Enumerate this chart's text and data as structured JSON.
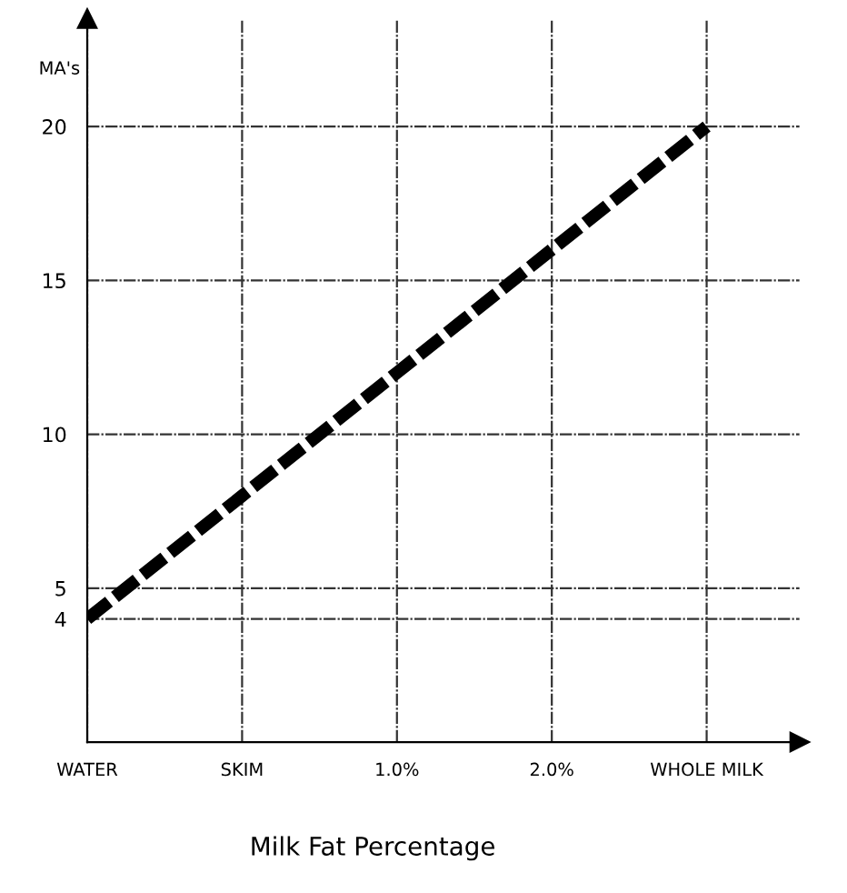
{
  "chart_data": {
    "type": "line",
    "ylabel": "MA's",
    "xlabel": "Milk Fat Percentage",
    "categories": [
      "WATER",
      "SKIM",
      "1.0%",
      "2.0%",
      "WHOLE MILK"
    ],
    "series": [
      {
        "color": "#000000",
        "values": [
          4,
          8,
          12,
          16,
          20
        ]
      }
    ],
    "ylim": [
      0,
      23.5
    ],
    "yticks": [
      4,
      5,
      10,
      15,
      20
    ],
    "grid": true,
    "line_style": "dashed",
    "marker": "none"
  }
}
